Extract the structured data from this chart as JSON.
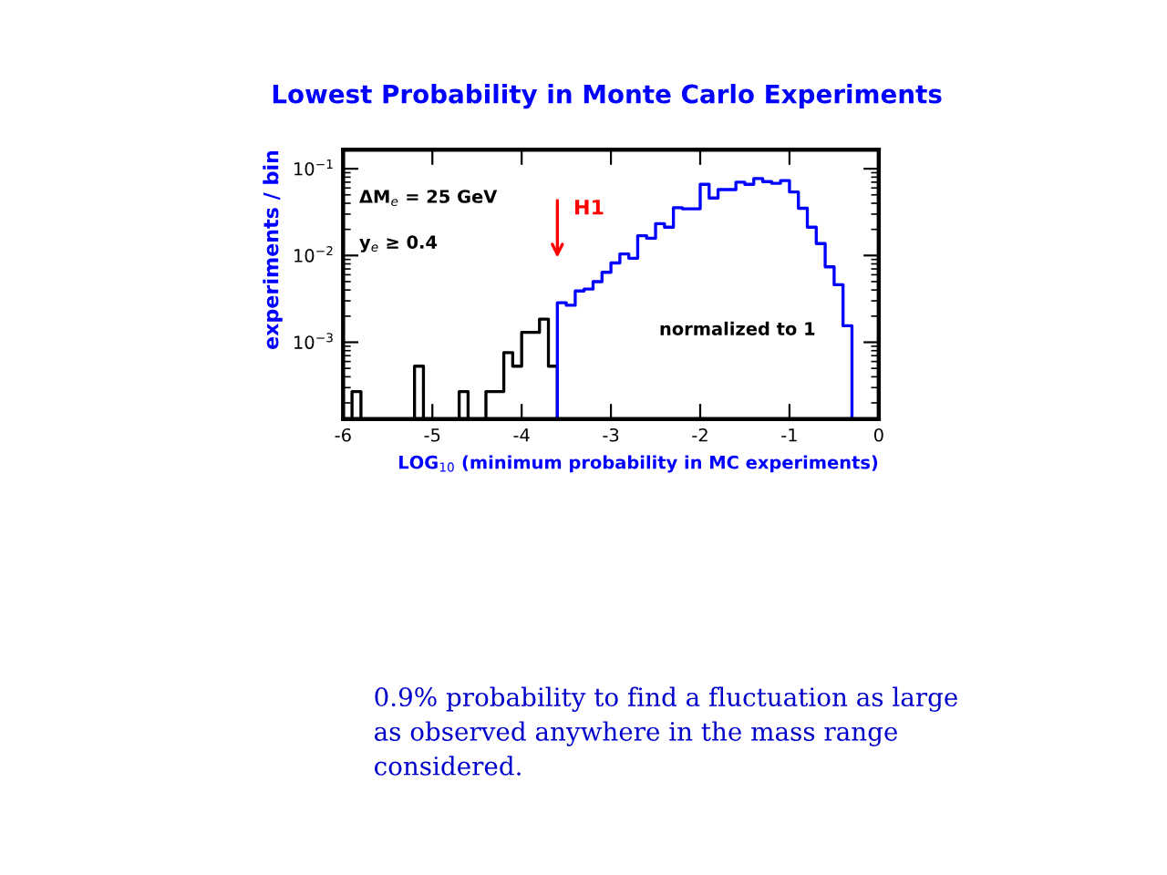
{
  "chart_data": {
    "type": "histogram",
    "title": "Lowest Probability in Monte Carlo Experiments",
    "xlabel": "LOG$_{10}$ (minimum probability in MC experiments)",
    "ylabel": "experiments / bin",
    "bins": [
      -6.0,
      -5.9,
      -5.8,
      -5.7,
      -5.6,
      -5.5,
      -5.4,
      -5.3,
      -5.2,
      -5.1,
      -5.0,
      -4.9,
      -4.8,
      -4.7,
      -4.6,
      -4.5,
      -4.4,
      -4.3,
      -4.2,
      -4.1,
      -4.0,
      -3.9,
      -3.8,
      -3.7,
      -3.6,
      -3.5,
      -3.4,
      -3.3,
      -3.2,
      -3.1,
      -3.0,
      -2.9,
      -2.8,
      -2.7,
      -2.6,
      -2.5,
      -2.4,
      -2.3,
      -2.2,
      -2.1,
      -2.0,
      -1.9,
      -1.8,
      -1.7,
      -1.6,
      -1.5,
      -1.4,
      -1.3,
      -1.2,
      -1.1,
      -1.0,
      -0.9,
      -0.8,
      -0.7,
      -0.6,
      -0.5,
      -0.4,
      -0.3,
      -0.2,
      -0.1,
      0.0
    ],
    "series": [
      {
        "color": "#000000",
        "values": [
          null,
          0.00027,
          null,
          null,
          null,
          null,
          null,
          null,
          0.00053,
          null,
          null,
          null,
          null,
          0.00027,
          null,
          null,
          0.00027,
          0.00027,
          0.00076,
          0.00053,
          0.0013,
          0.0013,
          0.00185,
          0.00053,
          null,
          null,
          null,
          null,
          null,
          null,
          null,
          null,
          null,
          null,
          null,
          null,
          null,
          null,
          null,
          null,
          null,
          null,
          null,
          null,
          null,
          null,
          null,
          null,
          null,
          null,
          null,
          null,
          null,
          null,
          null,
          null,
          null,
          null,
          null,
          null
        ]
      },
      {
        "color": "#0000ff",
        "values": [
          null,
          null,
          null,
          null,
          null,
          null,
          null,
          null,
          null,
          null,
          null,
          null,
          null,
          null,
          null,
          null,
          null,
          null,
          null,
          null,
          null,
          null,
          null,
          null,
          0.00285,
          0.00267,
          0.0039,
          0.0041,
          0.005,
          0.0064,
          0.0082,
          0.0104,
          0.0093,
          0.0169,
          0.0158,
          0.0233,
          0.0212,
          0.0355,
          0.0345,
          0.0345,
          0.066,
          0.046,
          0.0575,
          0.0575,
          0.07,
          0.066,
          0.077,
          0.071,
          0.068,
          0.073,
          0.054,
          0.035,
          0.0212,
          0.0137,
          0.0074,
          0.0046,
          0.00155,
          null,
          null,
          null
        ]
      }
    ],
    "log": "y",
    "xlim": [
      -6,
      0
    ],
    "xticks": [
      -6,
      -5,
      -4,
      -3,
      -2,
      -1,
      0
    ],
    "ylim": [
      0.00013,
      0.166
    ],
    "yticks": [
      {
        "value": 0.001,
        "label": "10$^{−3}$"
      },
      {
        "value": 0.01,
        "label": "10$^{−2}$"
      },
      {
        "value": 0.1,
        "label": "10$^{−1}$"
      }
    ],
    "grid": false,
    "legend": false,
    "annotations": [
      "ΔM$_{e}$ = 25 GeV",
      "y$_{e}$ ≥ 0.4",
      "H1",
      "normalized to 1",
      "0.9% probability to find a fluctuation as large as observed anywhere in the mass range considered."
    ]
  }
}
